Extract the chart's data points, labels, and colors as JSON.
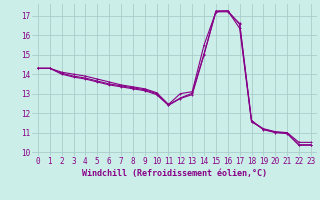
{
  "xlabel": "Windchill (Refroidissement éolien,°C)",
  "background_color": "#cceee8",
  "grid_color": "#aacccc",
  "line_color": "#880088",
  "xlim": [
    -0.5,
    23.5
  ],
  "ylim": [
    9.8,
    17.6
  ],
  "yticks": [
    10,
    11,
    12,
    13,
    14,
    15,
    16,
    17
  ],
  "xticks": [
    0,
    1,
    2,
    3,
    4,
    5,
    6,
    7,
    8,
    9,
    10,
    11,
    12,
    13,
    14,
    15,
    16,
    17,
    18,
    19,
    20,
    21,
    22,
    23
  ],
  "series1_x": [
    0,
    1,
    2,
    3,
    4,
    5,
    6,
    7,
    8,
    9,
    10,
    11,
    12,
    13,
    14,
    15,
    16,
    17,
    18,
    19,
    20,
    21,
    22,
    23
  ],
  "series1_y": [
    14.3,
    14.3,
    14.1,
    14.0,
    13.9,
    13.75,
    13.6,
    13.45,
    13.35,
    13.25,
    13.05,
    12.45,
    13.0,
    13.1,
    15.5,
    17.2,
    17.25,
    16.35,
    11.55,
    11.2,
    11.05,
    11.0,
    10.5,
    10.5
  ],
  "series2_x": [
    0,
    1,
    2,
    3,
    4,
    5,
    6,
    7,
    8,
    9,
    10,
    11,
    12,
    13,
    14,
    15,
    16,
    17,
    18,
    19,
    20,
    21,
    22,
    23
  ],
  "series2_y": [
    14.3,
    14.3,
    14.0,
    13.85,
    13.75,
    13.6,
    13.45,
    13.35,
    13.25,
    13.15,
    12.95,
    12.4,
    12.75,
    12.95,
    15.0,
    17.25,
    17.25,
    16.55,
    11.6,
    11.15,
    11.0,
    10.95,
    10.35,
    10.35
  ],
  "series3_x": [
    0,
    1,
    2,
    3,
    4,
    5,
    6,
    7,
    8,
    9,
    10,
    11,
    12,
    13,
    14,
    15,
    16,
    17,
    18,
    19,
    20,
    21,
    22,
    23
  ],
  "series3_y": [
    14.3,
    14.3,
    14.05,
    13.9,
    13.8,
    13.65,
    13.5,
    13.4,
    13.3,
    13.2,
    13.0,
    12.42,
    12.78,
    13.02,
    15.05,
    17.2,
    17.2,
    16.6,
    11.62,
    11.18,
    11.02,
    10.98,
    10.38,
    10.38
  ],
  "tick_fontsize": 5.5,
  "xlabel_fontsize": 6.0
}
